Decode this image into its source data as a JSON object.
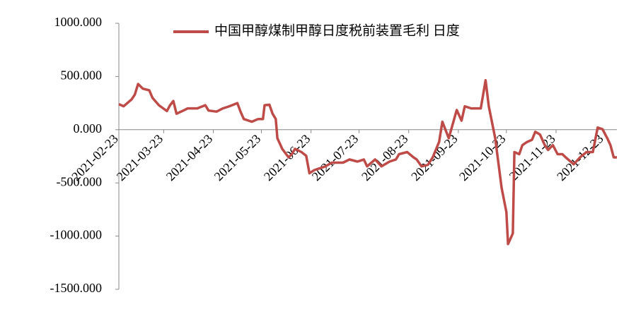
{
  "chart_data": {
    "type": "line",
    "x": [
      "2021-02-23",
      "2021-02-26",
      "2021-03-03",
      "2021-03-05",
      "2021-03-07",
      "2021-03-10",
      "2021-03-14",
      "2021-03-16",
      "2021-03-20",
      "2021-03-25",
      "2021-03-27",
      "2021-03-29",
      "2021-03-31",
      "2021-04-05",
      "2021-04-07",
      "2021-04-13",
      "2021-04-18",
      "2021-04-20",
      "2021-04-25",
      "2021-04-29",
      "2021-05-03",
      "2021-05-08",
      "2021-05-10",
      "2021-05-12",
      "2021-05-17",
      "2021-05-21",
      "2021-05-24",
      "2021-05-25",
      "2021-05-28",
      "2021-05-30",
      "2021-06-01",
      "2021-06-02",
      "2021-06-05",
      "2021-06-09",
      "2021-06-11",
      "2021-06-13",
      "2021-06-17",
      "2021-06-20",
      "2021-06-22",
      "2021-06-25",
      "2021-06-28",
      "2021-07-02",
      "2021-07-06",
      "2021-07-13",
      "2021-07-17",
      "2021-07-22",
      "2021-07-26",
      "2021-07-28",
      "2021-08-02",
      "2021-08-06",
      "2021-08-11",
      "2021-08-15",
      "2021-08-17",
      "2021-08-22",
      "2021-08-26",
      "2021-08-28",
      "2021-08-31",
      "2021-09-04",
      "2021-09-07",
      "2021-09-11",
      "2021-09-13",
      "2021-09-17",
      "2021-09-22",
      "2021-09-25",
      "2021-09-27",
      "2021-10-01",
      "2021-10-07",
      "2021-10-10",
      "2021-10-12",
      "2021-10-16",
      "2021-10-20",
      "2021-10-23",
      "2021-10-24",
      "2021-10-27",
      "2021-10-28",
      "2021-10-31",
      "2021-11-02",
      "2021-11-05",
      "2021-11-08",
      "2021-11-10",
      "2021-11-13",
      "2021-11-16",
      "2021-11-18",
      "2021-11-21",
      "2021-11-24",
      "2021-11-27",
      "2021-11-29",
      "2021-12-04",
      "2021-12-08",
      "2021-12-12",
      "2021-12-16",
      "2021-12-19",
      "2021-12-22",
      "2021-12-25",
      "2021-12-27",
      "2021-12-29",
      "2021-12-31"
    ],
    "series": [
      {
        "name": "中国甲醇煤制甲醇日度税前装置毛利 日度",
        "color": "#be4b48",
        "values": [
          240,
          220,
          285,
          330,
          430,
          385,
          370,
          300,
          230,
          175,
          230,
          270,
          150,
          185,
          200,
          200,
          230,
          180,
          170,
          200,
          220,
          250,
          170,
          100,
          75,
          100,
          100,
          230,
          235,
          150,
          100,
          -80,
          -180,
          -260,
          -230,
          -180,
          -210,
          -245,
          -410,
          -380,
          -365,
          -345,
          -310,
          -310,
          -280,
          -300,
          -280,
          -345,
          -280,
          -345,
          -300,
          -280,
          -230,
          -210,
          -260,
          -280,
          -345,
          -330,
          -260,
          -115,
          75,
          -80,
          185,
          85,
          220,
          200,
          200,
          465,
          220,
          -80,
          -545,
          -775,
          -1075,
          -975,
          -210,
          -230,
          -145,
          -115,
          -95,
          -20,
          -45,
          -145,
          -190,
          -145,
          -230,
          -230,
          -260,
          -325,
          -260,
          -210,
          -210,
          20,
          5,
          -80,
          -145,
          -260,
          -260
        ]
      }
    ],
    "xlim": [
      "2021-02-23",
      "2021-12-31"
    ],
    "xticks": [
      "2021-02-23",
      "2021-03-23",
      "2021-04-23",
      "2021-05-23",
      "2021-06-23",
      "2021-07-23",
      "2021-08-23",
      "2021-09-23",
      "2021-10-23",
      "2021-11-23",
      "2021-12-23"
    ],
    "ylim": [
      -1500,
      1000
    ],
    "yticks": [
      {
        "value": -1500,
        "label": "-1500.000"
      },
      {
        "value": -1000,
        "label": "-1000.000"
      },
      {
        "value": -500,
        "label": "-500.000"
      },
      {
        "value": 0,
        "label": "0.000"
      },
      {
        "value": 500,
        "label": "500.000"
      },
      {
        "value": 1000,
        "label": "1000.000"
      }
    ],
    "legend": "top"
  }
}
